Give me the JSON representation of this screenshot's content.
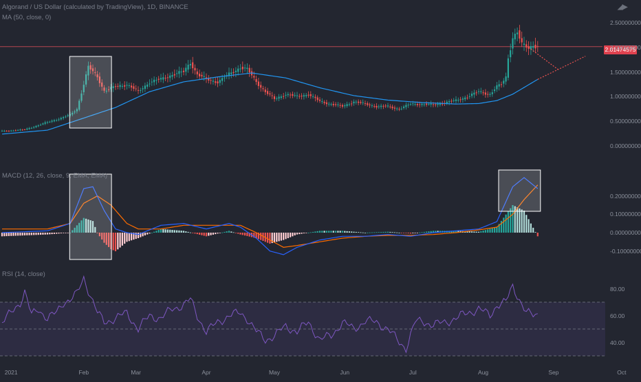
{
  "header": {
    "main_title": "Algorand / US Dollar (calculated by TradingView), 1D, BINANCE",
    "ma_label": "MA (50, close, 0)",
    "macd_label": "MACD (12, 26, close, 9, EMA, EMA)",
    "rsi_label": "RSI (14, close)",
    "logo": "tv-logo-icon"
  },
  "price_tag": "2.01474575",
  "colors": {
    "background": "#232630",
    "up": "#26a69a",
    "down": "#ef5350",
    "ma": "#2196f3",
    "macd": "#2962ff",
    "signal": "#ff6d00",
    "rsi": "#7e57c2",
    "price_line": "#b5454f",
    "highlight_box": "#ffffff"
  },
  "chart_data": [
    {
      "type": "candlestick",
      "panel": "price",
      "title": "Algorand / US Dollar (calculated by TradingView), 1D, BINANCE",
      "x_ticks": [
        "2021",
        "Feb",
        "Mar",
        "Apr",
        "May",
        "Jun",
        "Jul",
        "Aug",
        "Sep",
        "Oct"
      ],
      "y_ticks": [
        "2.50000000",
        "2.00000000",
        "1.50000000",
        "1.00000000",
        "0.50000000",
        "0.00000000"
      ],
      "ylim": [
        0.0,
        2.6
      ],
      "last_price": 2.01474575,
      "anchors_close": [
        [
          0,
          0.3
        ],
        [
          10,
          0.33
        ],
        [
          20,
          0.48
        ],
        [
          25,
          0.55
        ],
        [
          30,
          0.63
        ],
        [
          33,
          0.75
        ],
        [
          38,
          1.6
        ],
        [
          42,
          1.4
        ],
        [
          45,
          1.12
        ],
        [
          50,
          1.2
        ],
        [
          55,
          1.25
        ],
        [
          60,
          1.1
        ],
        [
          65,
          1.3
        ],
        [
          70,
          1.35
        ],
        [
          75,
          1.45
        ],
        [
          80,
          1.5
        ],
        [
          83,
          1.7
        ],
        [
          86,
          1.45
        ],
        [
          90,
          1.35
        ],
        [
          95,
          1.3
        ],
        [
          100,
          1.45
        ],
        [
          105,
          1.6
        ],
        [
          108,
          1.55
        ],
        [
          112,
          1.3
        ],
        [
          116,
          1.1
        ],
        [
          120,
          0.95
        ],
        [
          125,
          1.05
        ],
        [
          130,
          1.0
        ],
        [
          135,
          1.05
        ],
        [
          140,
          0.9
        ],
        [
          145,
          0.85
        ],
        [
          150,
          0.8
        ],
        [
          155,
          0.9
        ],
        [
          160,
          0.85
        ],
        [
          165,
          0.8
        ],
        [
          170,
          0.8
        ],
        [
          175,
          0.75
        ],
        [
          180,
          0.85
        ],
        [
          185,
          0.85
        ],
        [
          190,
          0.83
        ],
        [
          195,
          0.88
        ],
        [
          200,
          0.92
        ],
        [
          205,
          1.0
        ],
        [
          210,
          1.1
        ],
        [
          215,
          1.05
        ],
        [
          218,
          1.2
        ],
        [
          220,
          1.25
        ],
        [
          222,
          1.4
        ],
        [
          223,
          1.8
        ],
        [
          225,
          2.2
        ],
        [
          227,
          2.3
        ],
        [
          229,
          2.05
        ],
        [
          232,
          2.0
        ],
        [
          234,
          2.05
        ],
        [
          236,
          2.01
        ]
      ],
      "ma": {
        "name": "MA (50, close, 0)",
        "period": 50,
        "anchors": [
          [
            0,
            0.24
          ],
          [
            20,
            0.32
          ],
          [
            35,
            0.55
          ],
          [
            50,
            0.78
          ],
          [
            65,
            1.1
          ],
          [
            80,
            1.3
          ],
          [
            95,
            1.4
          ],
          [
            110,
            1.48
          ],
          [
            125,
            1.38
          ],
          [
            140,
            1.18
          ],
          [
            155,
            1.02
          ],
          [
            170,
            0.93
          ],
          [
            185,
            0.88
          ],
          [
            200,
            0.85
          ],
          [
            210,
            0.86
          ],
          [
            218,
            0.92
          ],
          [
            225,
            1.05
          ],
          [
            236,
            1.35
          ]
        ]
      },
      "projection_down": [
        [
          232,
          2.0
        ],
        [
          245,
          1.55
        ]
      ],
      "projection_up": [
        [
          236,
          1.35
        ],
        [
          257,
          1.82
        ]
      ],
      "highlight_box": {
        "from": 31,
        "to": 47
      }
    },
    {
      "type": "macd",
      "panel": "MACD",
      "title": "MACD (12, 26, close, 9, EMA, EMA)",
      "params": {
        "fast": 12,
        "slow": 26,
        "signal": 9
      },
      "y_ticks": [
        "0.20000000",
        "0.10000000",
        "0.00000000",
        "-0.10000000"
      ],
      "ylim": [
        -0.12,
        0.32
      ],
      "macd_anchors": [
        [
          0,
          0.0
        ],
        [
          20,
          0.01
        ],
        [
          30,
          0.05
        ],
        [
          36,
          0.24
        ],
        [
          40,
          0.25
        ],
        [
          45,
          0.12
        ],
        [
          50,
          0.02
        ],
        [
          55,
          0.0
        ],
        [
          60,
          -0.01
        ],
        [
          70,
          0.04
        ],
        [
          80,
          0.05
        ],
        [
          90,
          0.02
        ],
        [
          100,
          0.05
        ],
        [
          105,
          0.03
        ],
        [
          112,
          -0.03
        ],
        [
          118,
          -0.1
        ],
        [
          124,
          -0.12
        ],
        [
          130,
          -0.08
        ],
        [
          140,
          -0.04
        ],
        [
          150,
          -0.02
        ],
        [
          160,
          -0.02
        ],
        [
          170,
          -0.01
        ],
        [
          180,
          -0.02
        ],
        [
          190,
          0.0
        ],
        [
          200,
          0.01
        ],
        [
          210,
          0.02
        ],
        [
          218,
          0.06
        ],
        [
          225,
          0.25
        ],
        [
          230,
          0.3
        ],
        [
          236,
          0.24
        ]
      ],
      "signal_anchors": [
        [
          0,
          0.02
        ],
        [
          20,
          0.02
        ],
        [
          30,
          0.05
        ],
        [
          36,
          0.16
        ],
        [
          42,
          0.2
        ],
        [
          48,
          0.15
        ],
        [
          55,
          0.05
        ],
        [
          60,
          0.02
        ],
        [
          70,
          0.02
        ],
        [
          80,
          0.04
        ],
        [
          90,
          0.04
        ],
        [
          100,
          0.04
        ],
        [
          105,
          0.04
        ],
        [
          112,
          0.0
        ],
        [
          118,
          -0.04
        ],
        [
          124,
          -0.08
        ],
        [
          130,
          -0.07
        ],
        [
          140,
          -0.05
        ],
        [
          150,
          -0.03
        ],
        [
          160,
          -0.02
        ],
        [
          170,
          -0.015
        ],
        [
          180,
          -0.015
        ],
        [
          190,
          -0.01
        ],
        [
          200,
          0.0
        ],
        [
          210,
          0.015
        ],
        [
          218,
          0.03
        ],
        [
          225,
          0.1
        ],
        [
          230,
          0.18
        ],
        [
          236,
          0.26
        ]
      ],
      "highlight_boxes": [
        {
          "from": 31,
          "to": 47
        },
        {
          "from": 220,
          "to": 236
        }
      ]
    },
    {
      "type": "line",
      "panel": "RSI",
      "title": "RSI (14, close)",
      "y_ticks": [
        "80.00",
        "60.00",
        "40.00"
      ],
      "ylim": [
        30,
        92
      ],
      "band": [
        70,
        30
      ],
      "mid": 50,
      "rsi_anchors": [
        [
          0,
          55
        ],
        [
          4,
          62
        ],
        [
          8,
          70
        ],
        [
          10,
          78
        ],
        [
          13,
          60
        ],
        [
          16,
          65
        ],
        [
          20,
          58
        ],
        [
          24,
          62
        ],
        [
          27,
          70
        ],
        [
          30,
          72
        ],
        [
          33,
          76
        ],
        [
          36,
          88
        ],
        [
          39,
          75
        ],
        [
          42,
          62
        ],
        [
          45,
          55
        ],
        [
          50,
          58
        ],
        [
          55,
          62
        ],
        [
          60,
          50
        ],
        [
          65,
          60
        ],
        [
          70,
          58
        ],
        [
          75,
          65
        ],
        [
          80,
          68
        ],
        [
          83,
          72
        ],
        [
          86,
          60
        ],
        [
          90,
          48
        ],
        [
          95,
          55
        ],
        [
          100,
          60
        ],
        [
          105,
          62
        ],
        [
          108,
          58
        ],
        [
          112,
          48
        ],
        [
          116,
          42
        ],
        [
          120,
          45
        ],
        [
          125,
          52
        ],
        [
          130,
          48
        ],
        [
          135,
          55
        ],
        [
          140,
          42
        ],
        [
          145,
          45
        ],
        [
          150,
          55
        ],
        [
          155,
          50
        ],
        [
          160,
          56
        ],
        [
          165,
          55
        ],
        [
          170,
          50
        ],
        [
          175,
          40
        ],
        [
          178,
          36
        ],
        [
          182,
          55
        ],
        [
          185,
          56
        ],
        [
          190,
          53
        ],
        [
          195,
          55
        ],
        [
          200,
          58
        ],
        [
          205,
          62
        ],
        [
          210,
          65
        ],
        [
          215,
          60
        ],
        [
          218,
          68
        ],
        [
          222,
          70
        ],
        [
          225,
          82
        ],
        [
          228,
          72
        ],
        [
          231,
          62
        ],
        [
          234,
          60
        ],
        [
          236,
          61
        ]
      ]
    }
  ]
}
